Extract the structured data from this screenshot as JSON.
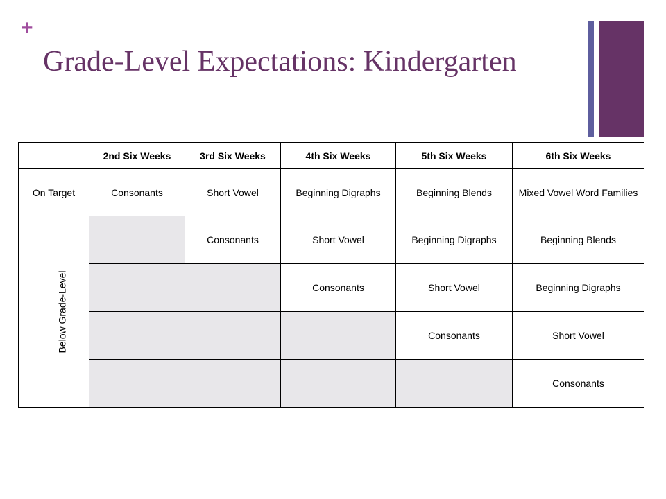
{
  "slide": {
    "plus_mark": "+",
    "title": "Grade-Level Expectations: Kindergarten"
  },
  "table": {
    "headers": [
      "",
      "2nd Six Weeks",
      "3rd Six Weeks",
      "4th Six Weeks",
      "5th Six Weeks",
      "6th Six Weeks"
    ],
    "on_target": {
      "label": "On Target",
      "cells": [
        "Consonants",
        "Short Vowel",
        "Beginning Digraphs",
        "Beginning Blends",
        "Mixed Vowel Word Families"
      ]
    },
    "below": {
      "label": "Below Grade-Level",
      "rows": [
        [
          "",
          "Consonants",
          "Short Vowel",
          "Beginning Digraphs",
          "Beginning Blends"
        ],
        [
          "",
          "",
          "Consonants",
          "Short Vowel",
          "Beginning Digraphs"
        ],
        [
          "",
          "",
          "",
          "Consonants",
          "Short Vowel"
        ],
        [
          "",
          "",
          "",
          "",
          "Consonants"
        ]
      ]
    }
  },
  "colors": {
    "title": "#663366",
    "plus": "#a04d9e",
    "accent_bar_thin": "#5e5e9e",
    "accent_bar_thick": "#663366",
    "empty_cell": "#e8e7ea"
  }
}
